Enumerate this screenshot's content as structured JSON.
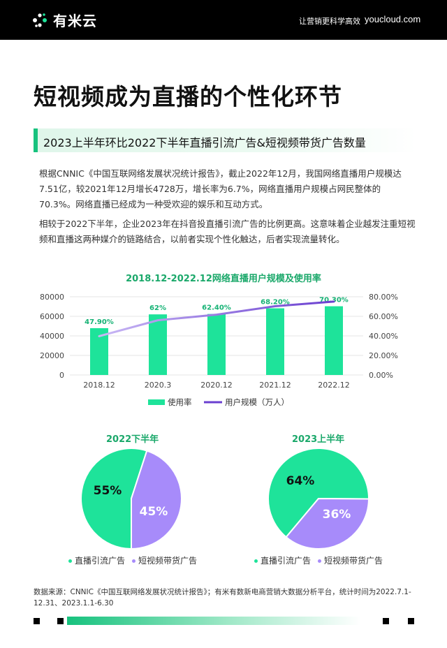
{
  "header": {
    "logo_text": "有米云",
    "slogan": "让营销更科学高效",
    "site": "youcloud.com"
  },
  "headline": "短视频成为直播的个性化环节",
  "banner": "2023上半年环比2022下半年直播引流广告&短视频带货广告数量",
  "paragraphs": {
    "p1": "根据CNNIC《中国互联网络发展状况统计报告》，截止2022年12月，我国网络直播用户规模达7.51亿，较2021年12月增长4728万，增长率为6.7%，网络直播用户规模占网民整体的70.3%。网络直播已经成为一种受欢迎的娱乐和互动方式。",
    "p2": "相较于2022下半年，企业2023年在抖音投直播引流广告的比例更高。这意味着企业越发注重短视频和直播这两种媒介的链路结合，以前者实现个性化触达，后者实现流量转化。"
  },
  "chart_data": [
    {
      "type": "bar",
      "title": "2018.12-2022.12网络直播用户规模及使用率",
      "categories": [
        "2018.12",
        "2020.3",
        "2020.12",
        "2021.12",
        "2022.12"
      ],
      "series": [
        {
          "name": "使用率",
          "type": "bar",
          "values": [
            47.9,
            62,
            62.4,
            68.2,
            70.3
          ],
          "labels": [
            "47.90%",
            "62%",
            "62.40%",
            "68.20%",
            "70.30%"
          ],
          "color": "#1ee39a"
        },
        {
          "name": "用户规模（万人）",
          "type": "line",
          "values": [
            39676,
            55982,
            61685,
            70337,
            75065
          ],
          "color": "#6a3fd0"
        }
      ],
      "y_left": {
        "min": 0,
        "max": 80000,
        "ticks": [
          "0",
          "20000",
          "40000",
          "60000",
          "80000"
        ]
      },
      "y_right": {
        "min": 0,
        "max": 80,
        "ticks": [
          "0.00%",
          "20.00%",
          "40.00%",
          "60.00%",
          "80.00%"
        ]
      },
      "legend": "bottom",
      "grid": true
    },
    {
      "type": "pie",
      "title": "2022下半年",
      "slices": [
        {
          "name": "直播引流广告",
          "value": 55,
          "label": "55%",
          "color": "#1ee39a"
        },
        {
          "name": "短视频带货广告",
          "value": 45,
          "label": "45%",
          "color": "#a78bfa"
        }
      ]
    },
    {
      "type": "pie",
      "title": "2023上半年",
      "slices": [
        {
          "name": "直播引流广告",
          "value": 64,
          "label": "64%",
          "color": "#1ee39a"
        },
        {
          "name": "短视频带货广告",
          "value": 36,
          "label": "36%",
          "color": "#a78bfa"
        }
      ]
    }
  ],
  "source": "数据来源：CNNIC《中国互联网络发展状况统计报告》；有米有数新电商营销大数据分析平台，统计时间为2022.7.1-12.31、2023.1.1-6.30"
}
